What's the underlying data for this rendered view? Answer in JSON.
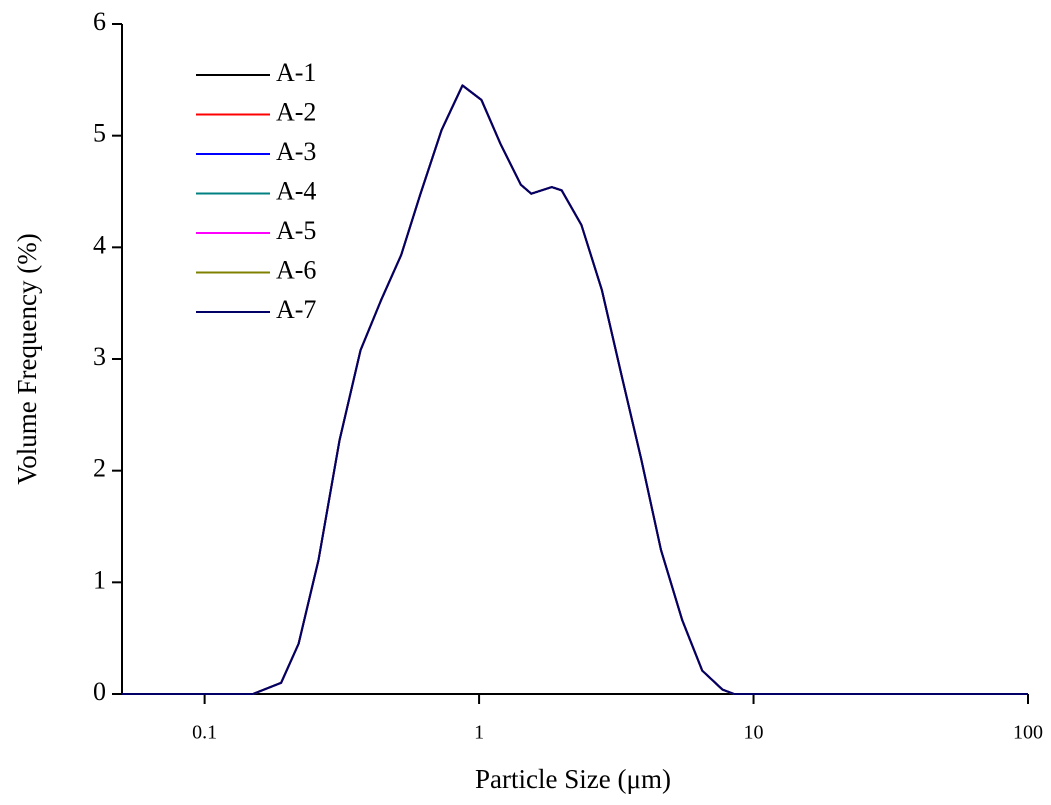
{
  "chart_data": {
    "type": "line",
    "xlabel": "Particle Size (μm)",
    "ylabel": "Volume Frequency (%)",
    "x": [
      0.05,
      0.1,
      0.15,
      0.19,
      0.22,
      0.26,
      0.31,
      0.37,
      0.44,
      0.52,
      0.61,
      0.73,
      0.79,
      0.87,
      1.02,
      1.2,
      1.42,
      1.55,
      1.84,
      2.0,
      2.36,
      2.8,
      3.3,
      3.9,
      4.6,
      5.5,
      6.5,
      7.7,
      8.5,
      10,
      100
    ],
    "series": [
      {
        "name": "A-1",
        "color": "#000000",
        "values": [
          0,
          0,
          0,
          0.1,
          0.45,
          1.2,
          2.27,
          3.08,
          3.53,
          3.93,
          4.47,
          5.05,
          5.23,
          5.45,
          5.32,
          4.92,
          4.56,
          4.48,
          4.54,
          4.51,
          4.2,
          3.62,
          2.86,
          2.1,
          1.29,
          0.66,
          0.21,
          0.04,
          0,
          0,
          0
        ]
      },
      {
        "name": "A-2",
        "color": "#ff0000",
        "values": [
          0,
          0,
          0,
          0.1,
          0.45,
          1.2,
          2.27,
          3.08,
          3.53,
          3.93,
          4.47,
          5.05,
          5.23,
          5.45,
          5.32,
          4.92,
          4.56,
          4.48,
          4.54,
          4.51,
          4.2,
          3.62,
          2.86,
          2.1,
          1.29,
          0.66,
          0.21,
          0.04,
          0,
          0,
          0
        ]
      },
      {
        "name": "A-3",
        "color": "#0000ff",
        "values": [
          0,
          0,
          0,
          0.1,
          0.45,
          1.2,
          2.27,
          3.08,
          3.53,
          3.93,
          4.47,
          5.05,
          5.23,
          5.45,
          5.32,
          4.92,
          4.56,
          4.48,
          4.54,
          4.51,
          4.2,
          3.62,
          2.86,
          2.1,
          1.29,
          0.66,
          0.21,
          0.04,
          0,
          0,
          0
        ]
      },
      {
        "name": "A-4",
        "color": "#008080",
        "values": [
          0,
          0,
          0,
          0.1,
          0.45,
          1.2,
          2.27,
          3.08,
          3.53,
          3.93,
          4.47,
          5.05,
          5.23,
          5.45,
          5.32,
          4.92,
          4.56,
          4.48,
          4.54,
          4.51,
          4.2,
          3.62,
          2.86,
          2.1,
          1.29,
          0.66,
          0.21,
          0.04,
          0,
          0,
          0
        ]
      },
      {
        "name": "A-5",
        "color": "#ff00ff",
        "values": [
          0,
          0,
          0,
          0.1,
          0.45,
          1.2,
          2.27,
          3.08,
          3.53,
          3.93,
          4.47,
          5.05,
          5.23,
          5.45,
          5.32,
          4.92,
          4.56,
          4.48,
          4.54,
          4.51,
          4.2,
          3.62,
          2.86,
          2.1,
          1.29,
          0.66,
          0.21,
          0.04,
          0,
          0,
          0
        ]
      },
      {
        "name": "A-6",
        "color": "#808000",
        "values": [
          0,
          0,
          0,
          0.1,
          0.45,
          1.2,
          2.27,
          3.08,
          3.53,
          3.93,
          4.47,
          5.05,
          5.23,
          5.45,
          5.32,
          4.92,
          4.56,
          4.48,
          4.54,
          4.51,
          4.2,
          3.62,
          2.86,
          2.1,
          1.29,
          0.66,
          0.21,
          0.04,
          0,
          0,
          0
        ]
      },
      {
        "name": "A-7",
        "color": "#000066",
        "values": [
          0,
          0,
          0,
          0.1,
          0.45,
          1.2,
          2.27,
          3.08,
          3.53,
          3.93,
          4.47,
          5.05,
          5.23,
          5.45,
          5.32,
          4.92,
          4.56,
          4.48,
          4.54,
          4.51,
          4.2,
          3.62,
          2.86,
          2.1,
          1.29,
          0.66,
          0.21,
          0.04,
          0,
          0,
          0
        ]
      }
    ],
    "xscale": "log",
    "xlim": [
      0.05,
      100
    ],
    "xticks": [
      0.1,
      1,
      10,
      100
    ],
    "ylim": [
      0,
      6
    ],
    "yticks": [
      0,
      1,
      2,
      3,
      4,
      5,
      6
    ],
    "grid": false,
    "legend": "upper left"
  }
}
